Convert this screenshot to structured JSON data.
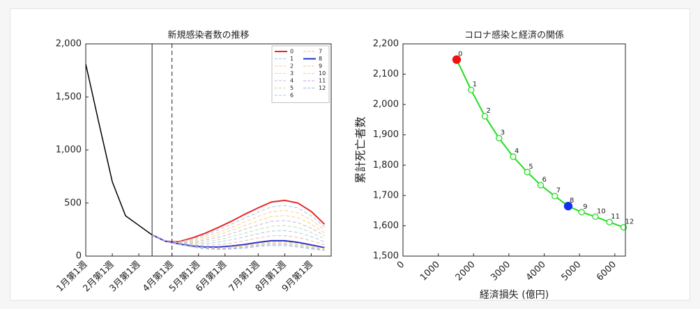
{
  "chart_data": [
    {
      "type": "line",
      "title": "新規感染者数の推移",
      "x": [
        0,
        2,
        4,
        6,
        8,
        10,
        12,
        14,
        16,
        18,
        20,
        22,
        24,
        26,
        28,
        30,
        32,
        34,
        36
      ],
      "xlim": [
        0,
        37
      ],
      "xticks": [
        {
          "value": 0,
          "label": "1月第1週"
        },
        {
          "value": 4,
          "label": "2月第1週"
        },
        {
          "value": 8,
          "label": "3月第1週"
        },
        {
          "value": 13,
          "label": "4月第1週"
        },
        {
          "value": 17,
          "label": "5月第1週"
        },
        {
          "value": 21,
          "label": "6月第1週"
        },
        {
          "value": 26,
          "label": "7月第1週"
        },
        {
          "value": 30,
          "label": "8月第1週"
        },
        {
          "value": 34,
          "label": "9月第1週"
        }
      ],
      "ylim": [
        0,
        2000
      ],
      "yticks": [
        0,
        500,
        {
          "value": 1000,
          "label": "1,000"
        },
        {
          "value": 1500,
          "label": "1,500"
        },
        {
          "value": 2000,
          "label": "2,000"
        }
      ],
      "vlines": [
        {
          "x": 10,
          "dash": false
        },
        {
          "x": 13,
          "dash": true
        }
      ],
      "legend": "upper right",
      "series": [
        {
          "color": "#000000",
          "dash": false,
          "width": 1.5,
          "values": [
            1810,
            1250,
            700,
            380,
            290,
            200,
            null,
            null,
            null,
            null,
            null,
            null,
            null,
            null,
            null,
            null,
            null,
            null,
            null
          ]
        },
        {
          "name": "0",
          "color": "#e8262a",
          "dash": false,
          "width": 2,
          "values": [
            null,
            null,
            null,
            null,
            null,
            200,
            140,
            135,
            170,
            215,
            270,
            330,
            395,
            455,
            510,
            525,
            500,
            420,
            300
          ]
        },
        {
          "name": "1",
          "color": "#9ecae1",
          "dash": true,
          "width": 1,
          "values": [
            null,
            null,
            null,
            null,
            null,
            200,
            140,
            133,
            161,
            199,
            247,
            301,
            359,
            414,
            464,
            478,
            454,
            381,
            273
          ]
        },
        {
          "name": "2",
          "color": "#fdc896",
          "dash": true,
          "width": 1,
          "values": [
            null,
            null,
            null,
            null,
            null,
            200,
            140,
            130,
            151,
            183,
            224,
            271,
            324,
            374,
            419,
            430,
            408,
            341,
            245
          ]
        },
        {
          "name": "3",
          "color": "#f0d878",
          "dash": true,
          "width": 1,
          "values": [
            null,
            null,
            null,
            null,
            null,
            200,
            140,
            128,
            142,
            166,
            201,
            242,
            288,
            333,
            373,
            383,
            361,
            302,
            218
          ]
        },
        {
          "name": "4",
          "color": "#c8b3e0",
          "dash": true,
          "width": 1,
          "values": [
            null,
            null,
            null,
            null,
            null,
            200,
            140,
            125,
            133,
            150,
            178,
            213,
            253,
            293,
            328,
            335,
            315,
            263,
            190
          ]
        },
        {
          "name": "5",
          "color": "#b8e0a8",
          "dash": true,
          "width": 1,
          "values": [
            null,
            null,
            null,
            null,
            null,
            200,
            140,
            123,
            123,
            134,
            154,
            183,
            217,
            252,
            282,
            288,
            269,
            223,
            163
          ]
        },
        {
          "name": "6",
          "color": "#a8c8ec",
          "dash": true,
          "width": 1,
          "values": [
            null,
            null,
            null,
            null,
            null,
            200,
            140,
            120,
            114,
            118,
            131,
            154,
            181,
            211,
            236,
            240,
            223,
            184,
            135
          ]
        },
        {
          "name": "7",
          "color": "#f4b4b4",
          "dash": true,
          "width": 1,
          "values": [
            null,
            null,
            null,
            null,
            null,
            200,
            140,
            118,
            104,
            101,
            108,
            124,
            146,
            171,
            191,
            193,
            176,
            144,
            108
          ]
        },
        {
          "name": "8",
          "color": "#2233cc",
          "dash": false,
          "width": 2,
          "values": [
            null,
            null,
            null,
            null,
            null,
            200,
            140,
            115,
            95,
            85,
            85,
            95,
            110,
            130,
            145,
            145,
            130,
            105,
            80
          ]
        },
        {
          "name": "9",
          "color": "#fdbf86",
          "dash": true,
          "width": 1,
          "values": [
            null,
            null,
            null,
            null,
            null,
            200,
            140,
            114,
            93,
            81,
            79,
            88,
            101,
            120,
            134,
            134,
            119,
            96,
            73
          ]
        },
        {
          "name": "10",
          "color": "#e8d870",
          "dash": true,
          "width": 1,
          "values": [
            null,
            null,
            null,
            null,
            null,
            200,
            140,
            114,
            91,
            77,
            74,
            81,
            93,
            111,
            123,
            122,
            108,
            86,
            67
          ]
        },
        {
          "name": "11",
          "color": "#bfa8e0",
          "dash": true,
          "width": 1,
          "values": [
            null,
            null,
            null,
            null,
            null,
            200,
            140,
            113,
            88,
            73,
            68,
            74,
            84,
            101,
            112,
            111,
            97,
            77,
            60
          ]
        },
        {
          "name": "12",
          "color": "#90b8e8",
          "dash": true,
          "width": 1,
          "values": [
            null,
            null,
            null,
            null,
            null,
            200,
            140,
            113,
            86,
            69,
            63,
            67,
            76,
            91,
            101,
            99,
            86,
            67,
            54
          ]
        }
      ]
    },
    {
      "type": "line",
      "title": "コロナ感染と経済の関係",
      "xlabel": "経済損失 (億円)",
      "ylabel": "累計死亡者数",
      "x": [
        1520,
        1930,
        2320,
        2720,
        3120,
        3520,
        3900,
        4300,
        4680,
        5060,
        5450,
        5850,
        6250
      ],
      "xlim": [
        0,
        6300
      ],
      "xticks": [
        0,
        1000,
        2000,
        3000,
        4000,
        5000,
        6000
      ],
      "ylim": [
        1500,
        2200
      ],
      "yticks": [
        {
          "value": 1500,
          "label": "1,500"
        },
        {
          "value": 1600,
          "label": "1,600"
        },
        {
          "value": 1700,
          "label": "1,700"
        },
        {
          "value": 1800,
          "label": "1,800"
        },
        {
          "value": 1900,
          "label": "1,900"
        },
        {
          "value": 2000,
          "label": "2,000"
        },
        {
          "value": 2100,
          "label": "2,100"
        },
        {
          "value": 2200,
          "label": "2,200"
        }
      ],
      "markers": true,
      "point_labels": [
        "0",
        "1",
        "2",
        "3",
        "4",
        "5",
        "6",
        "7",
        "8",
        "9",
        "10",
        "11",
        "12"
      ],
      "point_colors": [
        "#ee1111",
        null,
        null,
        null,
        null,
        null,
        null,
        null,
        "#1133ee",
        null,
        null,
        null,
        null
      ],
      "series": [
        {
          "color": "#22dd22",
          "dash": false,
          "width": 2,
          "values": [
            2148,
            2048,
            1961,
            1889,
            1828,
            1777,
            1734,
            1698,
            1665,
            1645,
            1630,
            1612,
            1595
          ]
        }
      ]
    }
  ]
}
